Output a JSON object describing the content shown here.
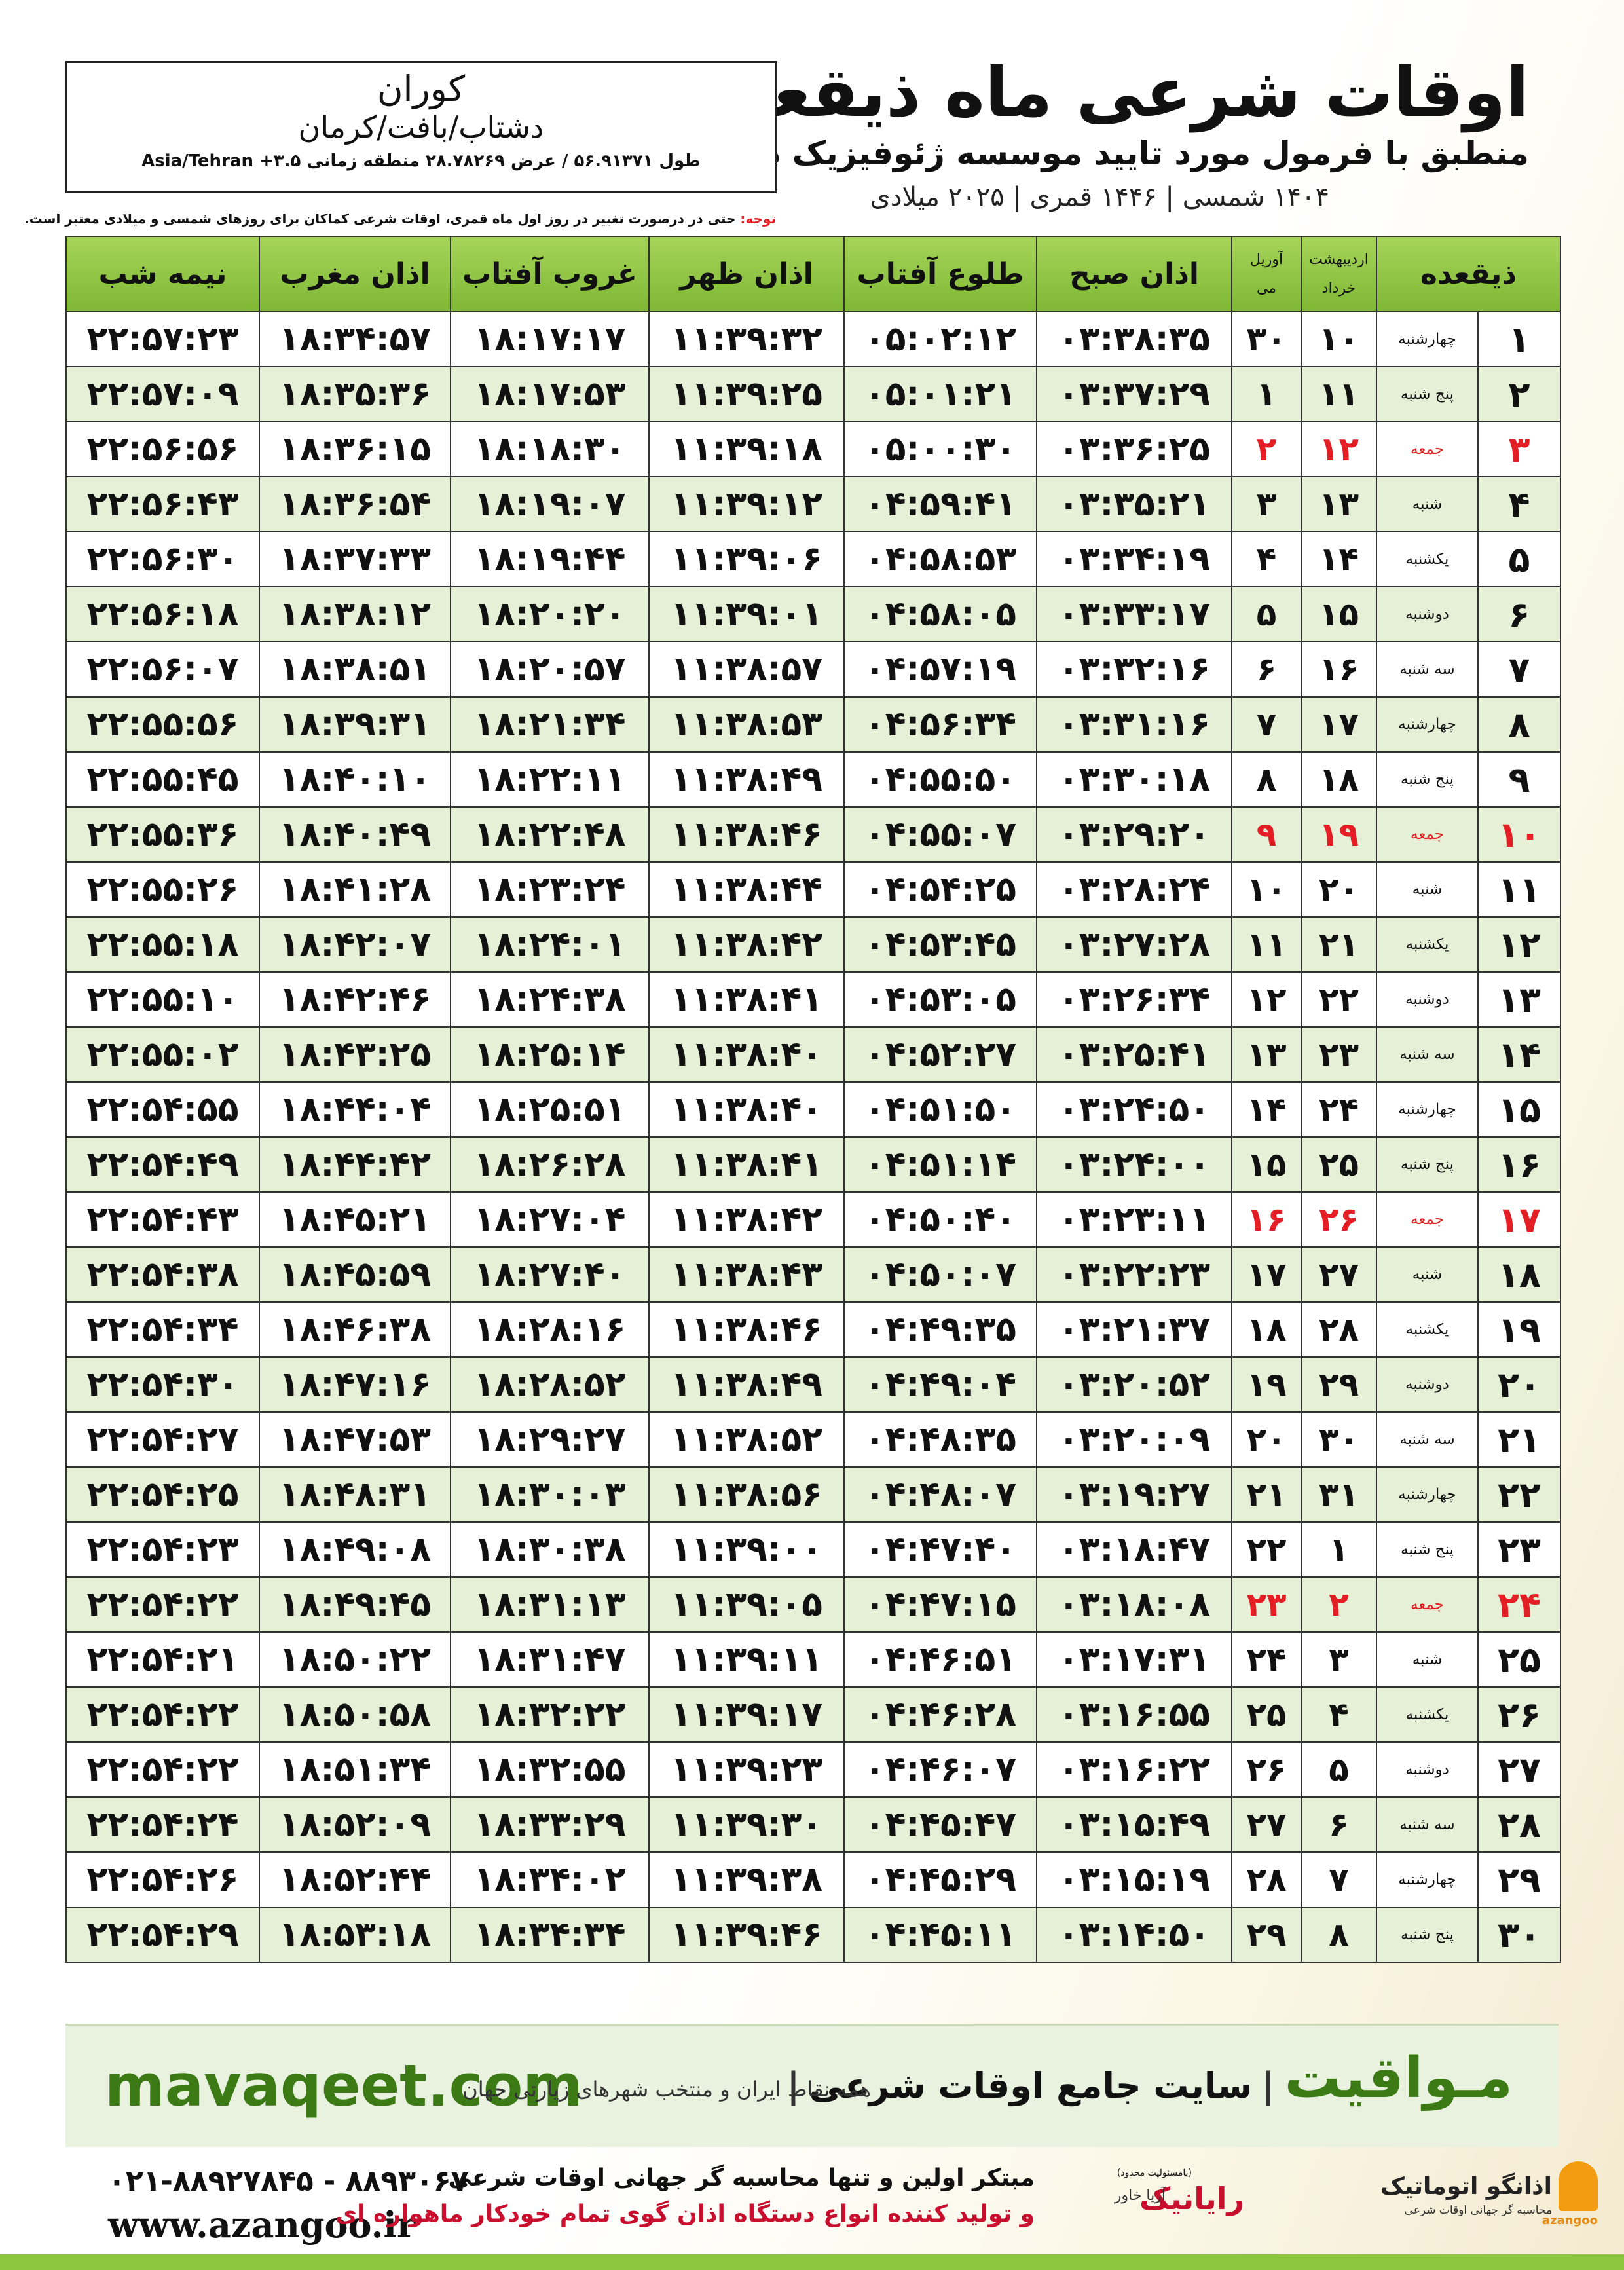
{
  "header": {
    "title": "اوقات شرعی ماه ذیقعده",
    "subtitle": "منطبق با فرمول مورد تایید موسسه ژئوفیزیک دانشگاه تهران",
    "years": "۱۴۰۴ شمسی | ۱۴۴۶ قمری | ۲۰۲۵ میلادی"
  },
  "location": {
    "city": "کوران",
    "region": "دشتاب/بافت/کرمان",
    "coords": "طول ۵۶.۹۱۳۷۱ / عرض ۲۸.۷۸۲۶۹ منطقه زمانی ۳.۵+ Asia/Tehran"
  },
  "note": {
    "label": "توجه:",
    "text": "حتی در درصورت تغییر در روز اول ماه قمری، اوقات شرعی کماکان برای روزهای شمسی و میلادی معتبر است."
  },
  "table": {
    "header": [
      "ذیقعده",
      [
        "اردیبهشت",
        "خرداد"
      ],
      [
        "آوریل",
        "می"
      ],
      "اذان صبح",
      "طلوع آفتاب",
      "اذان ظهر",
      "غروب آفتاب",
      "اذان مغرب",
      "نیمه شب"
    ],
    "rows": [
      {
        "cells": [
          "۱",
          "چهارشنبه",
          "۱۰",
          "۳۰",
          "۰۳:۳۸:۳۵",
          "۰۵:۰۲:۱۲",
          "۱۱:۳۹:۳۲",
          "۱۸:۱۷:۱۷",
          "۱۸:۳۴:۵۷",
          "۲۲:۵۷:۲۳"
        ]
      },
      {
        "cells": [
          "۲",
          "پنج شنبه",
          "۱۱",
          "۱",
          "۰۳:۳۷:۲۹",
          "۰۵:۰۱:۲۱",
          "۱۱:۳۹:۲۵",
          "۱۸:۱۷:۵۳",
          "۱۸:۳۵:۳۶",
          "۲۲:۵۷:۰۹"
        ]
      },
      {
        "cells": [
          "۳",
          "جمعه",
          "۱۲",
          "۲",
          "۰۳:۳۶:۲۵",
          "۰۵:۰۰:۳۰",
          "۱۱:۳۹:۱۸",
          "۱۸:۱۸:۳۰",
          "۱۸:۳۶:۱۵",
          "۲۲:۵۶:۵۶"
        ],
        "color": "#e31e24"
      },
      {
        "cells": [
          "۴",
          "شنبه",
          "۱۳",
          "۳",
          "۰۳:۳۵:۲۱",
          "۰۴:۵۹:۴۱",
          "۱۱:۳۹:۱۲",
          "۱۸:۱۹:۰۷",
          "۱۸:۳۶:۵۴",
          "۲۲:۵۶:۴۳"
        ]
      },
      {
        "cells": [
          "۵",
          "یکشنبه",
          "۱۴",
          "۴",
          "۰۳:۳۴:۱۹",
          "۰۴:۵۸:۵۳",
          "۱۱:۳۹:۰۶",
          "۱۸:۱۹:۴۴",
          "۱۸:۳۷:۳۳",
          "۲۲:۵۶:۳۰"
        ]
      },
      {
        "cells": [
          "۶",
          "دوشنبه",
          "۱۵",
          "۵",
          "۰۳:۳۳:۱۷",
          "۰۴:۵۸:۰۵",
          "۱۱:۳۹:۰۱",
          "۱۸:۲۰:۲۰",
          "۱۸:۳۸:۱۲",
          "۲۲:۵۶:۱۸"
        ]
      },
      {
        "cells": [
          "۷",
          "سه شنبه",
          "۱۶",
          "۶",
          "۰۳:۳۲:۱۶",
          "۰۴:۵۷:۱۹",
          "۱۱:۳۸:۵۷",
          "۱۸:۲۰:۵۷",
          "۱۸:۳۸:۵۱",
          "۲۲:۵۶:۰۷"
        ]
      },
      {
        "cells": [
          "۸",
          "چهارشنبه",
          "۱۷",
          "۷",
          "۰۳:۳۱:۱۶",
          "۰۴:۵۶:۳۴",
          "۱۱:۳۸:۵۳",
          "۱۸:۲۱:۳۴",
          "۱۸:۳۹:۳۱",
          "۲۲:۵۵:۵۶"
        ]
      },
      {
        "cells": [
          "۹",
          "پنج شنبه",
          "۱۸",
          "۸",
          "۰۳:۳۰:۱۸",
          "۰۴:۵۵:۵۰",
          "۱۱:۳۸:۴۹",
          "۱۸:۲۲:۱۱",
          "۱۸:۴۰:۱۰",
          "۲۲:۵۵:۴۵"
        ]
      },
      {
        "cells": [
          "۱۰",
          "جمعه",
          "۱۹",
          "۹",
          "۰۳:۲۹:۲۰",
          "۰۴:۵۵:۰۷",
          "۱۱:۳۸:۴۶",
          "۱۸:۲۲:۴۸",
          "۱۸:۴۰:۴۹",
          "۲۲:۵۵:۳۶"
        ],
        "color": "#e31e24"
      },
      {
        "cells": [
          "۱۱",
          "شنبه",
          "۲۰",
          "۱۰",
          "۰۳:۲۸:۲۴",
          "۰۴:۵۴:۲۵",
          "۱۱:۳۸:۴۴",
          "۱۸:۲۳:۲۴",
          "۱۸:۴۱:۲۸",
          "۲۲:۵۵:۲۶"
        ]
      },
      {
        "cells": [
          "۱۲",
          "یکشنبه",
          "۲۱",
          "۱۱",
          "۰۳:۲۷:۲۸",
          "۰۴:۵۳:۴۵",
          "۱۱:۳۸:۴۲",
          "۱۸:۲۴:۰۱",
          "۱۸:۴۲:۰۷",
          "۲۲:۵۵:۱۸"
        ]
      },
      {
        "cells": [
          "۱۳",
          "دوشنبه",
          "۲۲",
          "۱۲",
          "۰۳:۲۶:۳۴",
          "۰۴:۵۳:۰۵",
          "۱۱:۳۸:۴۱",
          "۱۸:۲۴:۳۸",
          "۱۸:۴۲:۴۶",
          "۲۲:۵۵:۱۰"
        ]
      },
      {
        "cells": [
          "۱۴",
          "سه شنبه",
          "۲۳",
          "۱۳",
          "۰۳:۲۵:۴۱",
          "۰۴:۵۲:۲۷",
          "۱۱:۳۸:۴۰",
          "۱۸:۲۵:۱۴",
          "۱۸:۴۳:۲۵",
          "۲۲:۵۵:۰۲"
        ]
      },
      {
        "cells": [
          "۱۵",
          "چهارشنبه",
          "۲۴",
          "۱۴",
          "۰۳:۲۴:۵۰",
          "۰۴:۵۱:۵۰",
          "۱۱:۳۸:۴۰",
          "۱۸:۲۵:۵۱",
          "۱۸:۴۴:۰۴",
          "۲۲:۵۴:۵۵"
        ]
      },
      {
        "cells": [
          "۱۶",
          "پنج شنبه",
          "۲۵",
          "۱۵",
          "۰۳:۲۴:۰۰",
          "۰۴:۵۱:۱۴",
          "۱۱:۳۸:۴۱",
          "۱۸:۲۶:۲۸",
          "۱۸:۴۴:۴۲",
          "۲۲:۵۴:۴۹"
        ]
      },
      {
        "cells": [
          "۱۷",
          "جمعه",
          "۲۶",
          "۱۶",
          "۰۳:۲۳:۱۱",
          "۰۴:۵۰:۴۰",
          "۱۱:۳۸:۴۲",
          "۱۸:۲۷:۰۴",
          "۱۸:۴۵:۲۱",
          "۲۲:۵۴:۴۳"
        ],
        "color": "#e31e24"
      },
      {
        "cells": [
          "۱۸",
          "شنبه",
          "۲۷",
          "۱۷",
          "۰۳:۲۲:۲۳",
          "۰۴:۵۰:۰۷",
          "۱۱:۳۸:۴۳",
          "۱۸:۲۷:۴۰",
          "۱۸:۴۵:۵۹",
          "۲۲:۵۴:۳۸"
        ]
      },
      {
        "cells": [
          "۱۹",
          "یکشنبه",
          "۲۸",
          "۱۸",
          "۰۳:۲۱:۳۷",
          "۰۴:۴۹:۳۵",
          "۱۱:۳۸:۴۶",
          "۱۸:۲۸:۱۶",
          "۱۸:۴۶:۳۸",
          "۲۲:۵۴:۳۴"
        ]
      },
      {
        "cells": [
          "۲۰",
          "دوشنبه",
          "۲۹",
          "۱۹",
          "۰۳:۲۰:۵۲",
          "۰۴:۴۹:۰۴",
          "۱۱:۳۸:۴۹",
          "۱۸:۲۸:۵۲",
          "۱۸:۴۷:۱۶",
          "۲۲:۵۴:۳۰"
        ]
      },
      {
        "cells": [
          "۲۱",
          "سه شنبه",
          "۳۰",
          "۲۰",
          "۰۳:۲۰:۰۹",
          "۰۴:۴۸:۳۵",
          "۱۱:۳۸:۵۲",
          "۱۸:۲۹:۲۷",
          "۱۸:۴۷:۵۳",
          "۲۲:۵۴:۲۷"
        ]
      },
      {
        "cells": [
          "۲۲",
          "چهارشنبه",
          "۳۱",
          "۲۱",
          "۰۳:۱۹:۲۷",
          "۰۴:۴۸:۰۷",
          "۱۱:۳۸:۵۶",
          "۱۸:۳۰:۰۳",
          "۱۸:۴۸:۳۱",
          "۲۲:۵۴:۲۵"
        ]
      },
      {
        "cells": [
          "۲۳",
          "پنج شنبه",
          "۱",
          "۲۲",
          "۰۳:۱۸:۴۷",
          "۰۴:۴۷:۴۰",
          "۱۱:۳۹:۰۰",
          "۱۸:۳۰:۳۸",
          "۱۸:۴۹:۰۸",
          "۲۲:۵۴:۲۳"
        ]
      },
      {
        "cells": [
          "۲۴",
          "جمعه",
          "۲",
          "۲۳",
          "۰۳:۱۸:۰۸",
          "۰۴:۴۷:۱۵",
          "۱۱:۳۹:۰۵",
          "۱۸:۳۱:۱۳",
          "۱۸:۴۹:۴۵",
          "۲۲:۵۴:۲۲"
        ],
        "color": "#e31e24"
      },
      {
        "cells": [
          "۲۵",
          "شنبه",
          "۳",
          "۲۴",
          "۰۳:۱۷:۳۱",
          "۰۴:۴۶:۵۱",
          "۱۱:۳۹:۱۱",
          "۱۸:۳۱:۴۷",
          "۱۸:۵۰:۲۲",
          "۲۲:۵۴:۲۱"
        ]
      },
      {
        "cells": [
          "۲۶",
          "یکشنبه",
          "۴",
          "۲۵",
          "۰۳:۱۶:۵۵",
          "۰۴:۴۶:۲۸",
          "۱۱:۳۹:۱۷",
          "۱۸:۳۲:۲۲",
          "۱۸:۵۰:۵۸",
          "۲۲:۵۴:۲۲"
        ]
      },
      {
        "cells": [
          "۲۷",
          "دوشنبه",
          "۵",
          "۲۶",
          "۰۳:۱۶:۲۲",
          "۰۴:۴۶:۰۷",
          "۱۱:۳۹:۲۳",
          "۱۸:۳۲:۵۵",
          "۱۸:۵۱:۳۴",
          "۲۲:۵۴:۲۲"
        ]
      },
      {
        "cells": [
          "۲۸",
          "سه شنبه",
          "۶",
          "۲۷",
          "۰۳:۱۵:۴۹",
          "۰۴:۴۵:۴۷",
          "۱۱:۳۹:۳۰",
          "۱۸:۳۳:۲۹",
          "۱۸:۵۲:۰۹",
          "۲۲:۵۴:۲۴"
        ]
      },
      {
        "cells": [
          "۲۹",
          "چهارشنبه",
          "۷",
          "۲۸",
          "۰۳:۱۵:۱۹",
          "۰۴:۴۵:۲۹",
          "۱۱:۳۹:۳۸",
          "۱۸:۳۴:۰۲",
          "۱۸:۵۲:۴۴",
          "۲۲:۵۴:۲۶"
        ]
      },
      {
        "cells": [
          "۳۰",
          "پنج شنبه",
          "۸",
          "۲۹",
          "۰۳:۱۴:۵۰",
          "۰۴:۴۵:۱۱",
          "۱۱:۳۹:۴۶",
          "۱۸:۳۴:۳۴",
          "۱۸:۵۳:۱۸",
          "۲۲:۵۴:۲۹"
        ]
      }
    ]
  },
  "banner": {
    "site": "mavaqeet.com",
    "brand": "مـواقیت",
    "slogan": "سایت جامع اوقات شرعی",
    "coverage": "همه نقاط ایران و منتخب شهرهای زیارتی جهان"
  },
  "footer": {
    "phones": "۰۲۱-۸۸۹۲۷۸۴۵ - ۸۸۹۳۰۶۷۰",
    "website": "www.azangoo.ir",
    "line1": "مبتکر اولین و تنها محاسبه گر جهانی اوقات شرعی",
    "line2": "و تولید کننده انواع دستگاه اذان گوی تمام خودکار ماهواره ای",
    "sponsor_note": "(بامسئولیت محدود)",
    "sponsor": "رایانیک",
    "sponsor2": "آریا خاور",
    "logo": "اذانگو اتوماتیک",
    "logo_sub": "محاسبه گر جهانی اوقات شرعی",
    "logo_en": "azangoo"
  }
}
